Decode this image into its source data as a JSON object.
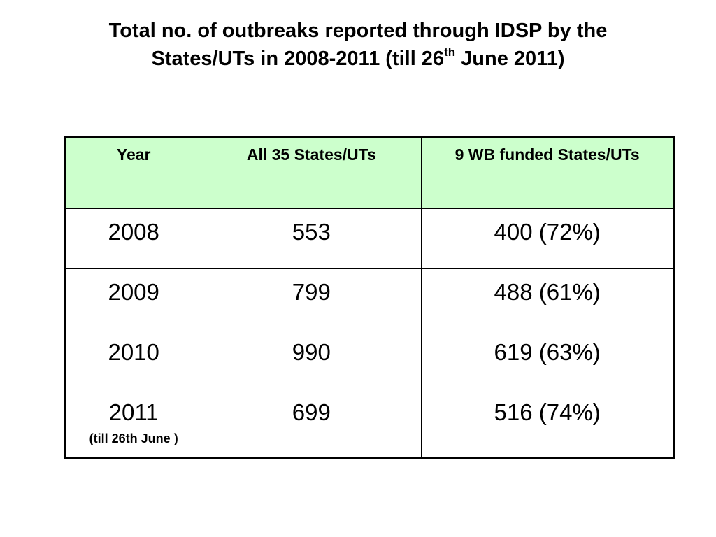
{
  "title": {
    "line1": "Total no. of outbreaks reported through IDSP by the",
    "line2_pre": "States/UTs in 2008-2011 (till 26",
    "line2_sup": "th",
    "line2_post": " June 2011)"
  },
  "table": {
    "headers": {
      "year": "Year",
      "all": "All 35 States/UTs",
      "wb": "9 WB funded States/UTs"
    },
    "rows": [
      {
        "year": "2008",
        "note": "",
        "all": "553",
        "wb": "400 (72%)"
      },
      {
        "year": "2009",
        "note": "",
        "all": "799",
        "wb": "488 (61%)"
      },
      {
        "year": "2010",
        "note": "",
        "all": "990",
        "wb": "619 (63%)"
      },
      {
        "year": "2011",
        "note": "(till 26th June )",
        "all": "699",
        "wb": "516 (74%)"
      }
    ]
  },
  "colors": {
    "header_bg": "#ccffcc",
    "border": "#000000",
    "background": "#ffffff"
  }
}
